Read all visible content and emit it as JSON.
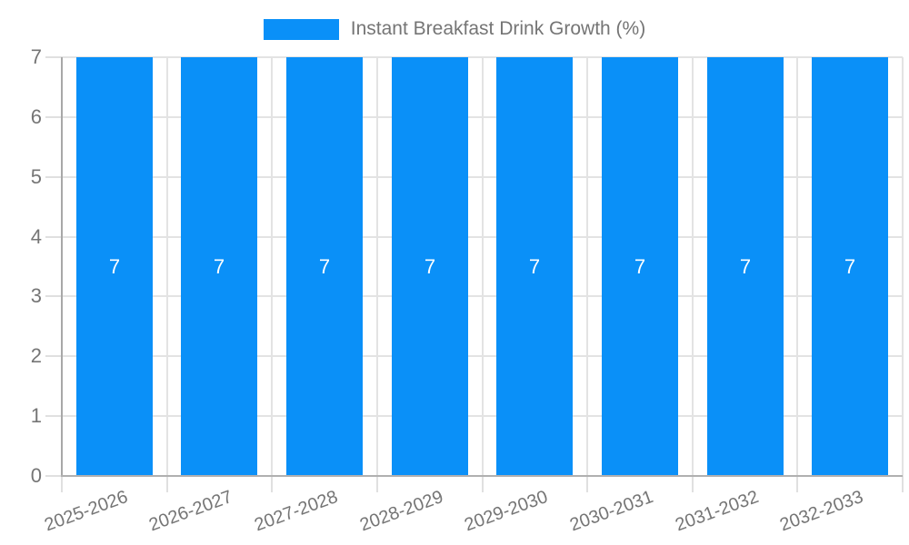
{
  "legend": {
    "label": "Instant Breakfast Drink Growth (%)"
  },
  "colors": {
    "bar": "#0a90f8",
    "bar_label": "#ffffff",
    "text": "#757575",
    "axis_y": "#a8a8a8",
    "axis_x": "#b0b0b0",
    "grid": "#e3e3e3",
    "tick": "#e0e0e0"
  },
  "chart_data": {
    "type": "bar",
    "title": "Instant Breakfast Drink Growth (%)",
    "categories": [
      "2025-2026",
      "2026-2027",
      "2027-2028",
      "2028-2029",
      "2029-2030",
      "2030-2031",
      "2031-2032",
      "2032-2033"
    ],
    "values": [
      7,
      7,
      7,
      7,
      7,
      7,
      7,
      7
    ],
    "bar_labels": [
      "7",
      "7",
      "7",
      "7",
      "7",
      "7",
      "7",
      "7"
    ],
    "y_ticks": [
      0,
      1,
      2,
      3,
      4,
      5,
      6,
      7
    ],
    "ylim": [
      0,
      7
    ],
    "xlabel": "",
    "ylabel": "",
    "grid": true,
    "legend_position": "top",
    "x_label_rotation_deg": -20
  }
}
